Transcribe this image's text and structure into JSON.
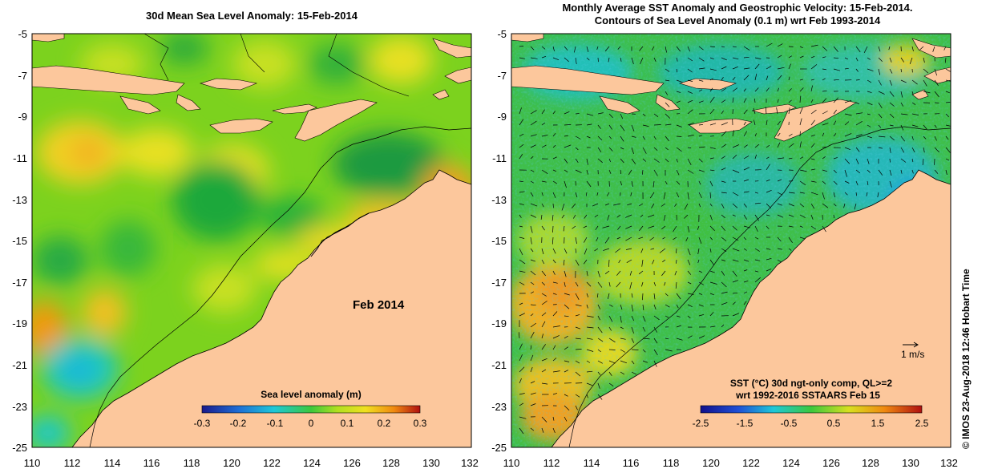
{
  "left_panel": {
    "title": "30d Mean Sea Level Anomaly: 15-Feb-2014",
    "annotation": "Feb 2014",
    "colorbar": {
      "label": "Sea level anomaly (m)",
      "ticks": [
        "-0.3",
        "-0.2",
        "-0.1",
        "0",
        "0.1",
        "0.2",
        "0.3"
      ]
    }
  },
  "right_panel": {
    "title_line1": "Monthly Average SST Anomaly  and Geostrophic Velocity: 15-Feb-2014.",
    "title_line2": "Contours of Sea Level Anomaly (0.1 m) wrt Feb 1993-2014",
    "scale_label": "1 m/s",
    "legend_line1": "SST (°C) 30d ngt-only comp, QL>=2",
    "legend_line2": "wrt 1992-2016 SSTAARS Feb 15",
    "colorbar": {
      "ticks": [
        "-2.5",
        "-1.5",
        "-0.5",
        "0.5",
        "1.5",
        "2.5"
      ]
    }
  },
  "axes": {
    "x_ticks": [
      "110",
      "112",
      "114",
      "116",
      "118",
      "120",
      "122",
      "124",
      "126",
      "128",
      "130",
      "132"
    ],
    "y_ticks": [
      "-5",
      "-7",
      "-9",
      "-11",
      "-13",
      "-15",
      "-17",
      "-19",
      "-21",
      "-23",
      "-25"
    ]
  },
  "credit": "© IMOS 23-Aug-2018 12:46 Hobart Time",
  "colors": {
    "land": "#fcc79c",
    "ocean_base": "#7cd21e",
    "sst_base": "#3fbf4a"
  }
}
